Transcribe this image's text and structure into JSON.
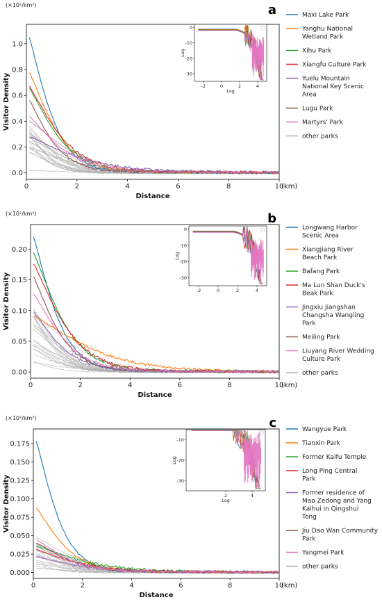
{
  "figure": {
    "xlim": [
      0,
      10
    ],
    "x_unit": "(km)",
    "y_unit": "(×10²/km²)"
  },
  "colors": {
    "blue": "#1f77b4",
    "orange": "#ff7f0e",
    "green": "#2ca02c",
    "red": "#d62728",
    "purple": "#9467bd",
    "brown": "#8c564b",
    "pink": "#e377c2",
    "grey": "#b0b0b0"
  },
  "chart_data": [
    {
      "panel": "a",
      "type": "line",
      "xlabel": "Distance",
      "ylabel": "Visitor Density",
      "y_unit": "(×10²/km²)",
      "xlim": [
        0,
        10
      ],
      "ylim": [
        -0.05,
        1.15
      ],
      "xticks": [
        "0",
        "2",
        "4",
        "6",
        "8",
        "10"
      ],
      "xtick_values": [
        0,
        2,
        4,
        6,
        8,
        10
      ],
      "yticks": [
        "0.0",
        "0.2",
        "0.4",
        "0.6",
        "0.8",
        "1.0"
      ],
      "ytick_values": [
        0,
        0.2,
        0.4,
        0.6,
        0.8,
        1.0
      ],
      "series": [
        {
          "name": "Maxi Lake Park",
          "color": "blue",
          "peak": 1.1,
          "decay": 1.05,
          "tail": 0.015
        },
        {
          "name": "Yanghu National Wetland Park",
          "color": "orange",
          "peak": 0.8,
          "decay": 1.25,
          "tail": 0.015
        },
        {
          "name": "Xihu Park",
          "color": "green",
          "peak": 0.67,
          "decay": 1.35,
          "tail": 0.015
        },
        {
          "name": "Xiangfu Culture Park",
          "color": "red",
          "peak": 0.68,
          "decay": 1.45,
          "tail": 0.015
        },
        {
          "name": "Yuelu Mountain National Key Scenic Area",
          "color": "purple",
          "peak": 0.27,
          "decay": 2.2,
          "tail": 0.015
        },
        {
          "name": "Lugu Park",
          "color": "brown",
          "peak": 0.58,
          "decay": 1.1,
          "tail": 0.015
        },
        {
          "name": "Martyrs' Park",
          "color": "pink",
          "peak": 0.44,
          "decay": 1.5,
          "tail": 0.015
        },
        {
          "name": "other parks",
          "color": "grey"
        }
      ],
      "others": {
        "count": 22,
        "peak_max": 0.5,
        "peak_min": 0.02
      },
      "inset": {
        "xlabel": "Log",
        "ylabel": "Log",
        "xticks": [
          "-2",
          "0",
          "2",
          "4"
        ],
        "xtick_values": [
          -2,
          0,
          2,
          4
        ],
        "yticks": [
          "0",
          "-10",
          "-20",
          "-30"
        ],
        "ytick_values": [
          0,
          -10,
          -20,
          -30
        ],
        "xlim": [
          -3,
          5
        ],
        "ylim": [
          -35,
          2
        ]
      },
      "label": "a"
    },
    {
      "panel": "b",
      "type": "line",
      "xlabel": "Distance",
      "ylabel": "Visitor Density",
      "y_unit": "(×10²/km²)",
      "xlim": [
        0,
        10
      ],
      "ylim": [
        -0.01,
        0.24
      ],
      "xticks": [
        "0",
        "2",
        "4",
        "6",
        "8",
        "10"
      ],
      "xtick_values": [
        0,
        2,
        4,
        6,
        8,
        10
      ],
      "yticks": [
        "0.00",
        "0.05",
        "0.10",
        "0.15",
        "0.20"
      ],
      "ytick_values": [
        0,
        0.05,
        0.1,
        0.15,
        0.2
      ],
      "series": [
        {
          "name": "Longwang Harbor Scenic Area",
          "color": "blue",
          "peak": 0.23,
          "decay": 1.1,
          "tail": 0.003
        },
        {
          "name": "Xiangjiang River Beach Park",
          "color": "orange",
          "peak": 0.09,
          "decay": 2.6,
          "tail": 0.003
        },
        {
          "name": "Bafang Park",
          "color": "green",
          "peak": 0.2,
          "decay": 1.4,
          "tail": 0.003
        },
        {
          "name": "Ma Lun Shan Duck's Beak Park",
          "color": "red",
          "peak": 0.18,
          "decay": 1.5,
          "tail": 0.003
        },
        {
          "name": "Jingxiu Jiangshan Changsha Wangling Park",
          "color": "purple",
          "peak": 0.1,
          "decay": 1.3,
          "tail": 0.003
        },
        {
          "name": "Meiling Park",
          "color": "brown",
          "peak": 0.16,
          "decay": 1.2,
          "tail": 0.003
        },
        {
          "name": "Liuyang River Wedding Culture Park",
          "color": "pink",
          "peak": 0.13,
          "decay": 1.4,
          "tail": 0.003
        },
        {
          "name": "other parks",
          "color": "grey"
        }
      ],
      "others": {
        "count": 20,
        "peak_max": 0.11,
        "peak_min": 0.01
      },
      "inset": {
        "xlabel": "",
        "ylabel": "Log",
        "xticks": [
          "-2",
          "0",
          "2",
          "4"
        ],
        "xtick_values": [
          -2,
          0,
          2,
          4
        ],
        "yticks": [
          "0",
          "-10",
          "-20",
          "-30"
        ],
        "ytick_values": [
          0,
          -10,
          -20,
          -30
        ],
        "xlim": [
          -3,
          5
        ],
        "ylim": [
          -35,
          2
        ]
      },
      "label": "b"
    },
    {
      "panel": "c",
      "type": "line",
      "xlabel": "Distance",
      "ylabel": "Visitor Density",
      "y_unit": "(×10²/km²)",
      "xlim": [
        0,
        10
      ],
      "ylim": [
        -0.008,
        0.195
      ],
      "xticks": [
        "0",
        "2",
        "4",
        "6",
        "8",
        "10"
      ],
      "xtick_values": [
        0,
        2,
        4,
        6,
        8,
        10
      ],
      "yticks": [
        "0.000",
        "0.025",
        "0.050",
        "0.075",
        "0.100",
        "0.125",
        "0.150",
        "0.175"
      ],
      "ytick_values": [
        0,
        0.025,
        0.05,
        0.075,
        0.1,
        0.125,
        0.15,
        0.175
      ],
      "series": [
        {
          "name": "Wangyue Park",
          "color": "blue",
          "peak": 0.188,
          "decay": 1.05,
          "tail": 0.002
        },
        {
          "name": "Tianxin Park",
          "color": "orange",
          "peak": 0.09,
          "decay": 1.3,
          "tail": 0.002
        },
        {
          "name": "Former Kaifu Temple",
          "color": "green",
          "peak": 0.035,
          "decay": 2.2,
          "tail": 0.002
        },
        {
          "name": "Long Ping Central Park",
          "color": "red",
          "peak": 0.03,
          "decay": 1.8,
          "tail": 0.002
        },
        {
          "name": "Former residence of Mao Zedong and Yang Kaihui in Qingshui Tong",
          "color": "purple",
          "peak": 0.02,
          "decay": 1.9,
          "tail": 0.002
        },
        {
          "name": "Jiu Dao Wan Community Park",
          "color": "brown",
          "peak": 0.04,
          "decay": 1.5,
          "tail": 0.002
        },
        {
          "name": "Yangmei Park",
          "color": "pink",
          "peak": 0.045,
          "decay": 1.4,
          "tail": 0.002
        },
        {
          "name": "other parks",
          "color": "grey"
        }
      ],
      "others": {
        "count": 20,
        "peak_max": 0.052,
        "peak_min": 0.005
      },
      "inset": {
        "xlabel": "Log",
        "ylabel": "Log",
        "xticks": [
          "2",
          "4"
        ],
        "xtick_values": [
          2,
          4
        ],
        "yticks": [
          "-10",
          "-20",
          "-30"
        ],
        "ytick_values": [
          -10,
          -20,
          -30
        ],
        "xlim": [
          -1,
          5
        ],
        "ylim": [
          -35,
          -5
        ]
      },
      "label": "c"
    }
  ]
}
